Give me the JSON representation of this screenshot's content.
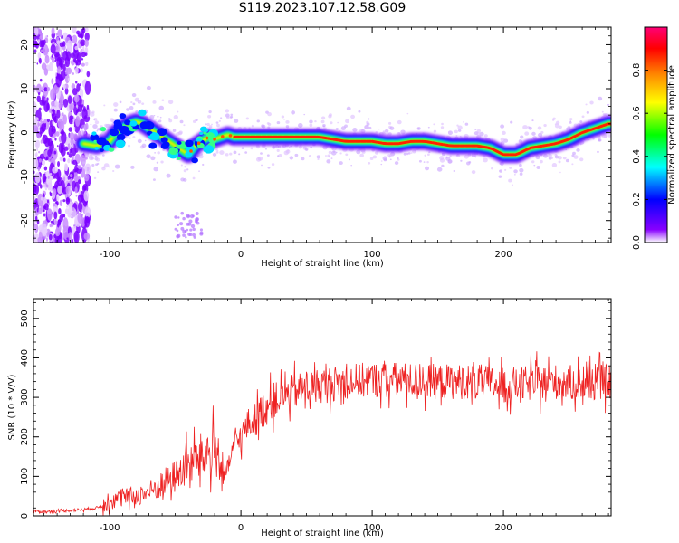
{
  "title": "S119.2023.107.12.58.G09",
  "chart_data": [
    {
      "type": "heatmap",
      "xlabel": "Height of straight line (km)",
      "ylabel": "Frequency (Hz)",
      "xlim": [
        -158,
        282
      ],
      "ylim": [
        -25,
        24
      ],
      "x_ticks": [
        -100,
        0,
        100,
        200
      ],
      "y_ticks": [
        20,
        10,
        0,
        -10,
        -20
      ],
      "colorbar": {
        "label": "Normalized spectral amplitude",
        "range": [
          0,
          1
        ],
        "ticks": [
          "0.0",
          "0.2",
          "0.4",
          "0.6",
          "0.8"
        ],
        "colormap": [
          "#ffffff",
          "#8800ff",
          "#0000ff",
          "#00ffff",
          "#00ff00",
          "#ffff00",
          "#ff8800",
          "#ff0000",
          "#ff0077"
        ]
      },
      "ridge": {
        "x": [
          -120,
          -110,
          -100,
          -95,
          -90,
          -85,
          -80,
          -75,
          -70,
          -65,
          -60,
          -55,
          -50,
          -45,
          -40,
          -35,
          -30,
          -25,
          -20,
          -15,
          -10,
          -5,
          0,
          10,
          20,
          30,
          40,
          50,
          60,
          70,
          80,
          90,
          100,
          110,
          120,
          130,
          140,
          150,
          160,
          170,
          180,
          190,
          200,
          210,
          220,
          230,
          240,
          250,
          260,
          270,
          280
        ],
        "y": [
          -2.5,
          -3,
          -2,
          0,
          1,
          2,
          2.5,
          2,
          1,
          0,
          -1,
          -2,
          -3,
          -4,
          -5,
          -3,
          -2,
          -1,
          -1.5,
          -1,
          -0.5,
          -1,
          -1,
          -1,
          -1,
          -1,
          -1,
          -1,
          -1,
          -1.5,
          -2,
          -2,
          -2,
          -2.5,
          -2.5,
          -2,
          -2,
          -2.5,
          -3,
          -3,
          -3,
          -3.5,
          -5,
          -5,
          -3.5,
          -3,
          -2.5,
          -1.5,
          0,
          1,
          2
        ]
      }
    },
    {
      "type": "line",
      "xlabel": "Height of straight line (km)",
      "ylabel": "SNR (10 * V/V)",
      "xlim": [
        -158,
        282
      ],
      "ylim": [
        0,
        550
      ],
      "x_ticks": [
        -100,
        0,
        100,
        200
      ],
      "y_ticks": [
        0,
        100,
        200,
        300,
        400,
        500
      ],
      "color": "#ee2222",
      "series": [
        {
          "x": [
            -158,
            -150,
            -140,
            -130,
            -120,
            -110,
            -105,
            -100,
            -90,
            -80,
            -70,
            -60,
            -50,
            -40,
            -30,
            -20,
            -12,
            -5,
            0,
            5,
            10,
            15,
            20,
            30,
            40,
            60,
            80,
            100,
            120,
            140,
            160,
            180,
            200,
            220,
            240,
            260,
            282
          ],
          "y": [
            12,
            10,
            12,
            14,
            16,
            20,
            25,
            35,
            45,
            50,
            60,
            80,
            100,
            130,
            150,
            170,
            100,
            180,
            200,
            230,
            240,
            260,
            280,
            300,
            315,
            330,
            340,
            345,
            345,
            340,
            340,
            340,
            330,
            335,
            340,
            335,
            340
          ]
        }
      ]
    }
  ]
}
